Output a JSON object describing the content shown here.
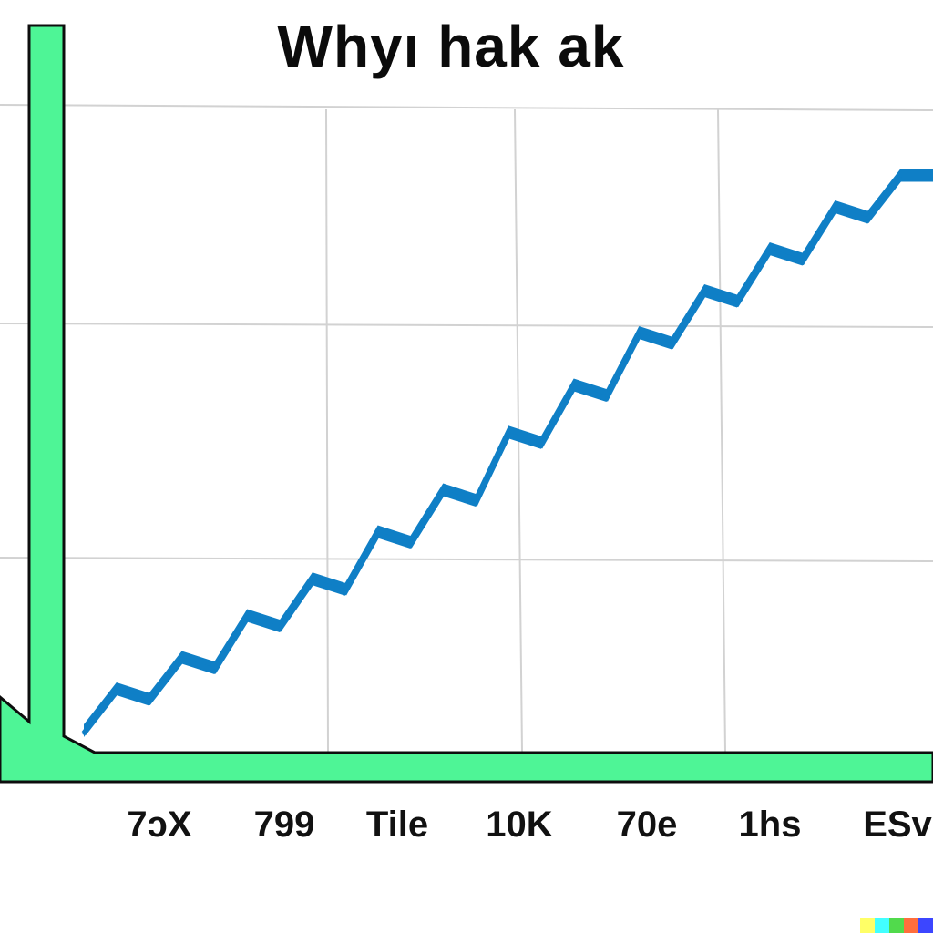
{
  "chart_data": {
    "type": "line",
    "title": "Whyı hak  ak",
    "xlabel": "",
    "ylabel": "",
    "categories": [
      "7ɔX",
      "799",
      "Tile",
      "10K",
      "70e",
      "1hs",
      "ESv"
    ],
    "x": [
      0,
      0.5,
      1,
      1.5,
      2,
      2.5,
      3,
      3.5,
      4,
      4.5,
      5,
      5.5,
      6,
      6.5,
      7,
      7.5,
      8,
      8.5,
      9,
      9.5,
      10,
      10.5,
      11,
      11.5,
      12,
      12.5,
      13
    ],
    "series": [
      {
        "values": [
          0,
          0.4,
          0.3,
          0.7,
          0.6,
          1.1,
          1.0,
          1.45,
          1.35,
          1.9,
          1.8,
          2.3,
          2.2,
          2.85,
          2.75,
          3.3,
          3.2,
          3.8,
          3.7,
          4.2,
          4.1,
          4.6,
          4.5,
          5.0,
          4.9,
          5.3,
          5.3
        ],
        "color": "#0f7fc6"
      }
    ],
    "ylim": [
      0,
      6
    ],
    "grid": true,
    "legend": "none",
    "axis_color": "#4ef596",
    "axis_outline_color": "#0d0d0d",
    "line_color": "#0f7fc6"
  },
  "watermark_colors": [
    "#ffff66",
    "#42ffff",
    "#51da4c",
    "#ff6e3c",
    "#3c46ff"
  ]
}
